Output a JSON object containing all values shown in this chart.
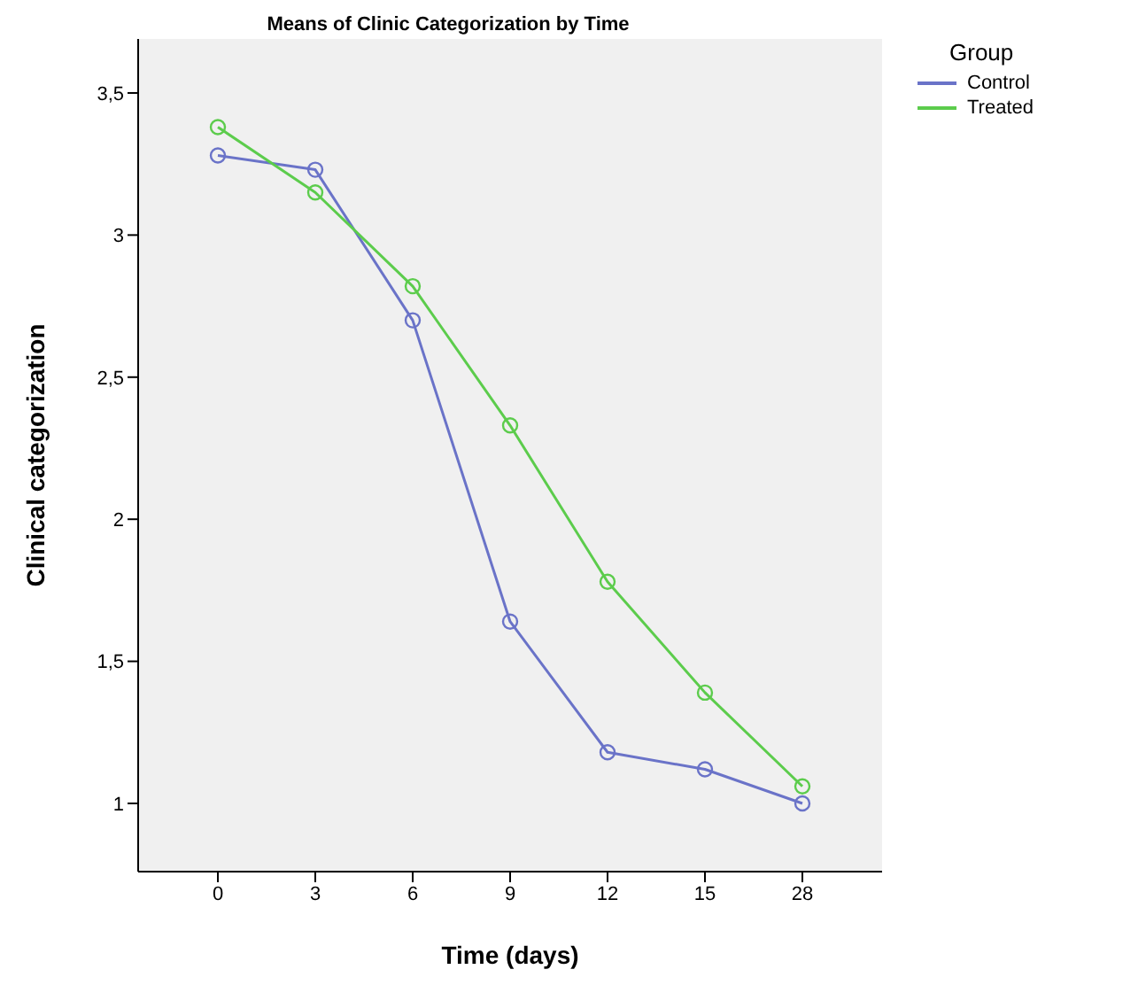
{
  "chart_data": {
    "type": "line",
    "title": "Means of Clinic Categorization by Time",
    "xlabel": "Time (days)",
    "ylabel": "Clinical categorization",
    "legend_title": "Group",
    "categories": [
      "0",
      "3",
      "6",
      "9",
      "12",
      "15",
      "28"
    ],
    "series": [
      {
        "name": "Control",
        "color": "#6a73c8",
        "values": [
          3.28,
          3.23,
          2.7,
          1.64,
          1.18,
          1.12,
          1.0
        ]
      },
      {
        "name": "Treated",
        "color": "#5ccc4c",
        "values": [
          3.38,
          3.15,
          2.82,
          2.33,
          1.78,
          1.39,
          1.06
        ]
      }
    ],
    "ylim": [
      0.76,
      3.69
    ],
    "yticks": [
      {
        "value": 1,
        "label": "1"
      },
      {
        "value": 1.5,
        "label": "1,5"
      },
      {
        "value": 2,
        "label": "2"
      },
      {
        "value": 2.5,
        "label": "2,5"
      },
      {
        "value": 3,
        "label": "3"
      },
      {
        "value": 3.5,
        "label": "3,5"
      }
    ],
    "marker": "circle",
    "legend": "top right",
    "grid": false
  }
}
